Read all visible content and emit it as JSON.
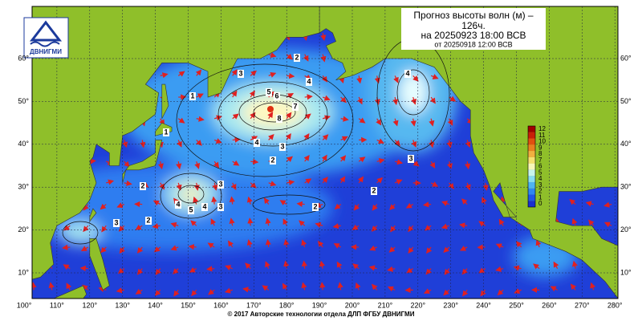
{
  "header": {
    "title_line1": "Прогноз высоты волн (м) –",
    "title_line2": "126ч.",
    "valid": "на 20250923 18:00 ВСВ",
    "issued": "от 20250918 12:00 ВСВ"
  },
  "logo": {
    "text": "ДВНИГМИ"
  },
  "footer": "© 2017 Авторские технологии отдела ДЛП ФГБУ ДВНИГМИ",
  "map": {
    "lon_ticks": [
      {
        "value": 100,
        "label": "100°"
      },
      {
        "value": 110,
        "label": "110°"
      },
      {
        "value": 120,
        "label": "120°"
      },
      {
        "value": 130,
        "label": "130°"
      },
      {
        "value": 140,
        "label": "140°"
      },
      {
        "value": 150,
        "label": "150°"
      },
      {
        "value": 160,
        "label": "160°"
      },
      {
        "value": 170,
        "label": "170°"
      },
      {
        "value": 180,
        "label": "180°"
      },
      {
        "value": 190,
        "label": "190°"
      },
      {
        "value": 200,
        "label": "200°"
      },
      {
        "value": 210,
        "label": "210°"
      },
      {
        "value": 220,
        "label": "220°"
      },
      {
        "value": 230,
        "label": "230°"
      },
      {
        "value": 240,
        "label": "240°"
      },
      {
        "value": 250,
        "label": "250°"
      },
      {
        "value": 260,
        "label": "260°"
      },
      {
        "value": 270,
        "label": "270°"
      },
      {
        "value": 280,
        "label": "280°"
      }
    ],
    "lat_ticks": [
      {
        "value": 10,
        "label": "10°"
      },
      {
        "value": 20,
        "label": "20°"
      },
      {
        "value": 30,
        "label": "30°"
      },
      {
        "value": 40,
        "label": "40°"
      },
      {
        "value": 50,
        "label": "50°"
      },
      {
        "value": 60,
        "label": "60°"
      }
    ],
    "colorbar": [
      0,
      1,
      2,
      3,
      4,
      5,
      6,
      7,
      8,
      9,
      10,
      11,
      12
    ],
    "contour_labels": [
      2,
      3,
      4,
      5,
      6,
      7,
      8,
      4,
      3,
      2,
      1,
      1,
      2,
      3,
      4,
      5,
      4,
      3,
      2,
      4,
      3,
      2,
      2,
      3
    ]
  }
}
